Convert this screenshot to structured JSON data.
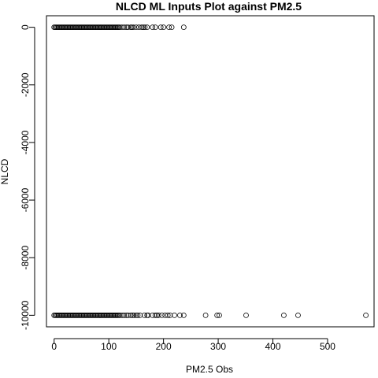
{
  "chart_data": {
    "type": "scatter",
    "title": "NLCD ML Inputs Plot against PM2.5",
    "xlabel": "PM2.5 Obs",
    "ylabel": "NLCD",
    "xlim": [
      -14,
      585
    ],
    "ylim": [
      -10400,
      400
    ],
    "x_ticks": [
      0,
      100,
      200,
      300,
      400,
      500
    ],
    "x_tick_labels": [
      "0",
      "100",
      "200",
      "300",
      "400",
      "500"
    ],
    "y_ticks": [
      0,
      -2000,
      -4000,
      -6000,
      -8000,
      -10000
    ],
    "y_tick_labels": [
      "0",
      "-2000",
      "-4000",
      "-6000",
      "-8000",
      "-10000"
    ],
    "grid": false,
    "legend": "none",
    "series": [
      {
        "y": 0,
        "x": [
          0,
          2,
          4,
          6,
          8,
          10,
          12,
          14,
          16,
          18,
          20,
          22,
          24,
          26,
          28,
          30,
          32,
          34,
          36,
          38,
          40,
          42,
          44,
          46,
          48,
          50,
          52,
          54,
          56,
          58,
          60,
          62,
          64,
          66,
          68,
          70,
          72,
          74,
          76,
          78,
          80,
          82,
          84,
          86,
          88,
          90,
          92,
          94,
          96,
          98,
          100,
          102,
          104,
          106,
          108,
          110,
          112,
          114,
          116,
          118,
          120,
          124,
          128,
          132,
          135,
          140,
          142,
          145,
          150,
          155,
          160,
          163,
          166,
          170,
          180,
          185,
          195,
          200,
          210,
          215,
          237
        ]
      },
      {
        "y": -10000,
        "x": [
          0,
          2,
          4,
          6,
          8,
          10,
          12,
          14,
          16,
          18,
          20,
          22,
          24,
          26,
          28,
          30,
          32,
          34,
          36,
          38,
          40,
          42,
          44,
          46,
          48,
          50,
          52,
          54,
          56,
          58,
          60,
          62,
          64,
          66,
          68,
          70,
          72,
          74,
          76,
          78,
          80,
          82,
          84,
          86,
          88,
          90,
          92,
          94,
          96,
          98,
          100,
          102,
          104,
          106,
          108,
          110,
          112,
          114,
          116,
          118,
          120,
          124,
          128,
          132,
          135,
          140,
          143,
          146,
          150,
          153,
          157,
          165,
          170,
          172,
          180,
          185,
          188,
          191,
          197,
          203,
          208,
          212,
          220,
          230,
          237,
          277,
          298,
          302,
          351,
          420,
          446,
          570
        ]
      }
    ]
  }
}
